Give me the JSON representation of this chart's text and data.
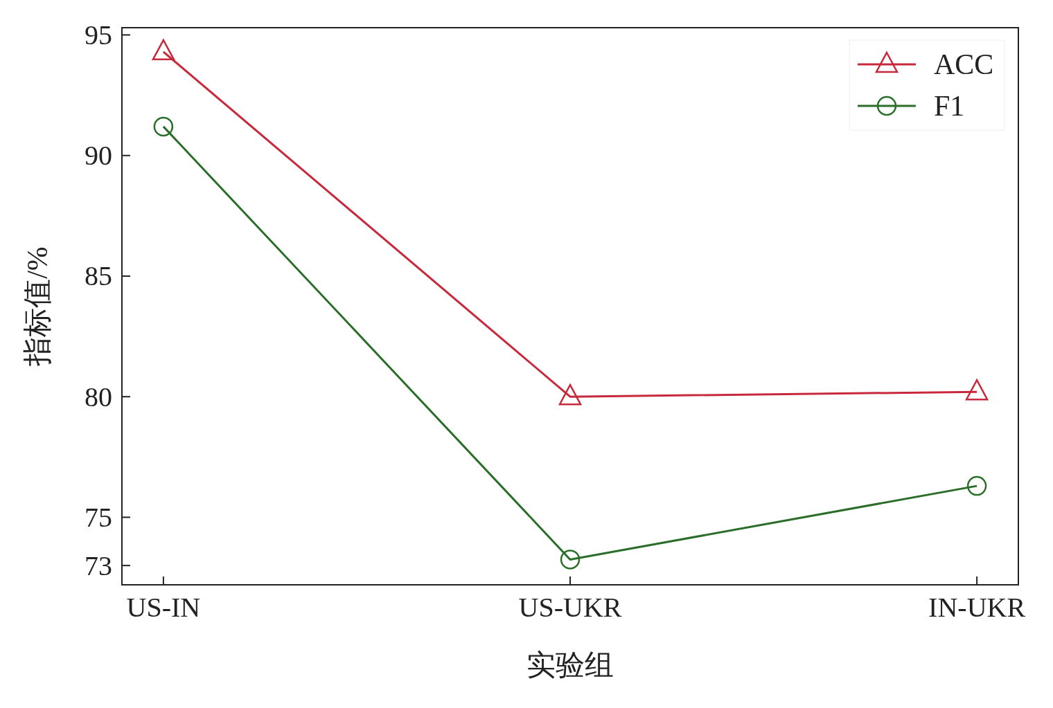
{
  "chart_data": {
    "type": "line",
    "xlabel": "实验组",
    "ylabel": "指标值/%",
    "categories": [
      "US-IN",
      "US-UKR",
      "IN-UKR"
    ],
    "series": [
      {
        "name": "ACC",
        "color": "#c8283c",
        "marker": "triangle",
        "values": [
          94.3,
          80.0,
          80.2
        ]
      },
      {
        "name": "F1",
        "color": "#2a6e2a",
        "marker": "circle",
        "values": [
          91.2,
          73.25,
          76.3
        ]
      }
    ],
    "ylim": [
      72.2,
      95.3
    ],
    "yticks": [
      73,
      75,
      80,
      85,
      90,
      95
    ],
    "legend": "top right"
  }
}
